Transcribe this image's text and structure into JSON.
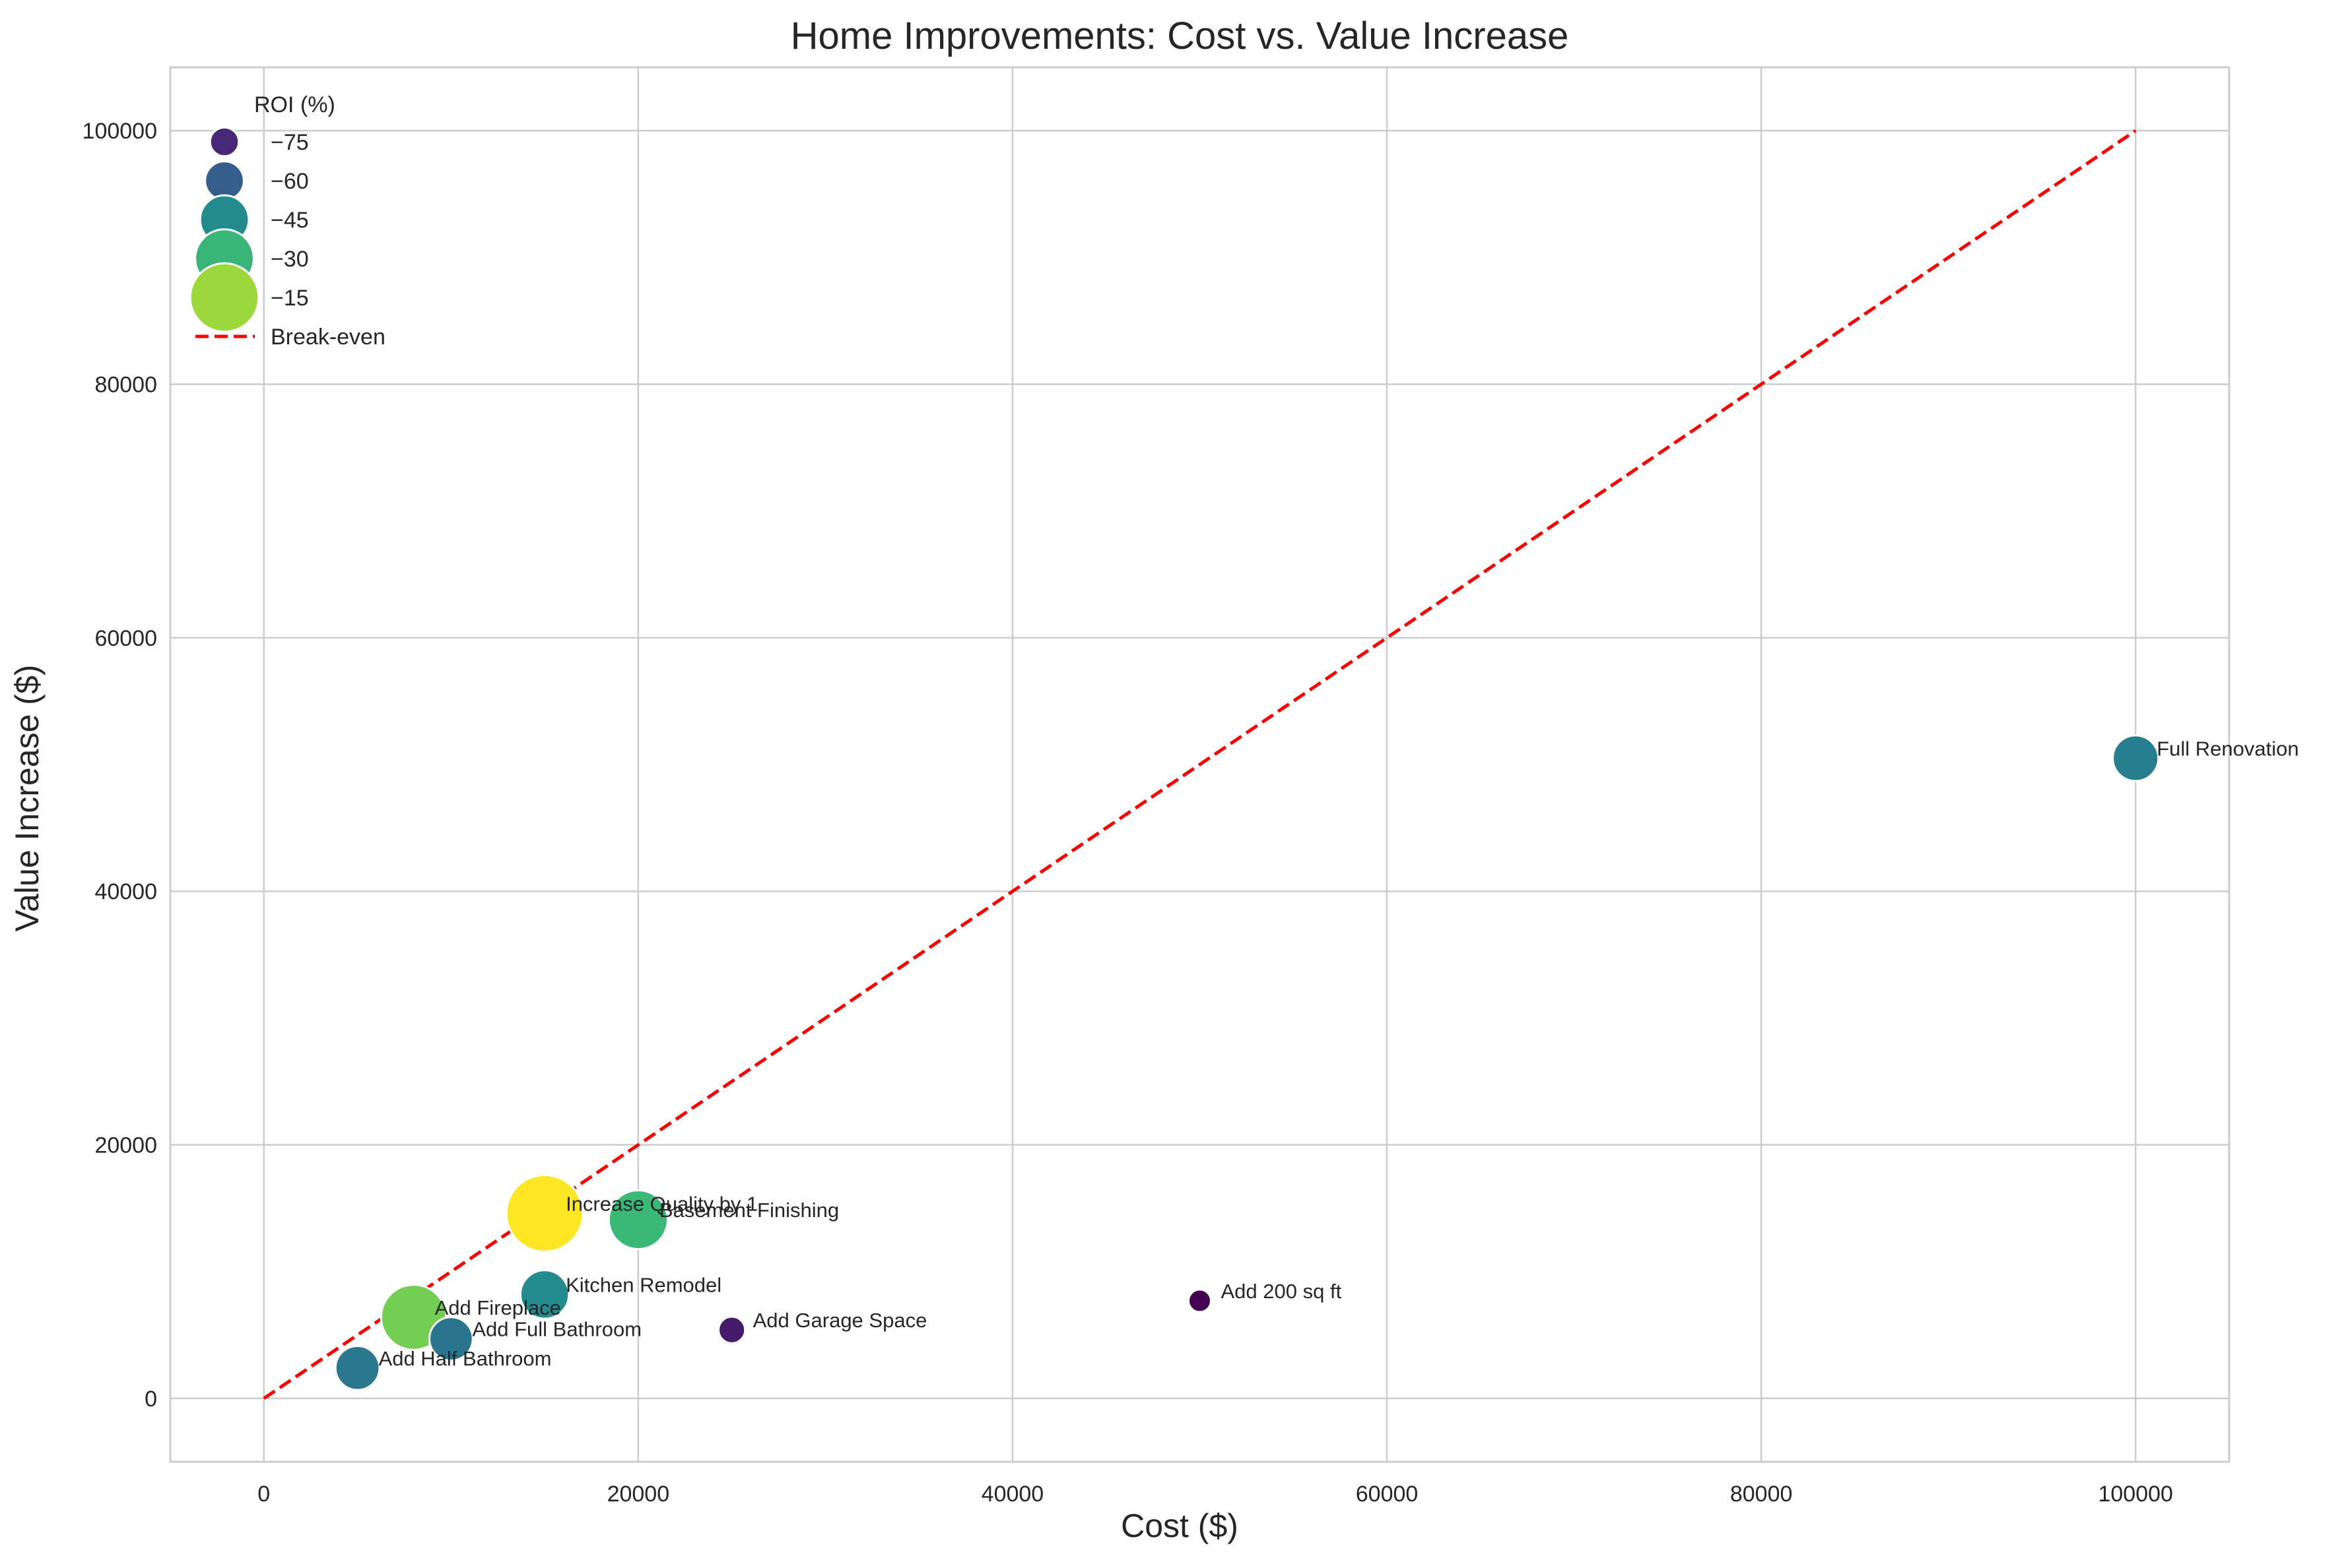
{
  "chart_data": {
    "type": "scatter",
    "title": "Home Improvements: Cost vs. Value Increase",
    "xlabel": "Cost ($)",
    "ylabel": "Value Increase ($)",
    "xlim": [
      -5000,
      105000
    ],
    "ylim": [
      -5000,
      105000
    ],
    "x_ticks": [
      0,
      20000,
      40000,
      60000,
      80000,
      100000
    ],
    "y_ticks": [
      0,
      20000,
      40000,
      60000,
      80000,
      100000
    ],
    "grid": true,
    "legend_position": "top-left",
    "size_and_color_encoding": "ROI (%)",
    "points": [
      {
        "label": "Full Renovation",
        "x": 100000,
        "y": 50500,
        "roi": -49.5
      },
      {
        "label": "Add 200 sq ft",
        "x": 50000,
        "y": 7700,
        "roi": -84.6
      },
      {
        "label": "Add Garage Space",
        "x": 25000,
        "y": 5400,
        "roi": -78.4
      },
      {
        "label": "Basement Finishing",
        "x": 20000,
        "y": 14100,
        "roi": -29.5
      },
      {
        "label": "Increase Quality by 1",
        "x": 15000,
        "y": 14600,
        "roi": -2.7
      },
      {
        "label": "Kitchen Remodel",
        "x": 15000,
        "y": 8200,
        "roi": -45.3
      },
      {
        "label": "Add Fireplace",
        "x": 8000,
        "y": 6400,
        "roi": -20.0
      },
      {
        "label": "Add Full Bathroom",
        "x": 10000,
        "y": 4700,
        "roi": -53.0
      },
      {
        "label": "Add Half Bathroom",
        "x": 5000,
        "y": 2400,
        "roi": -52.0
      }
    ],
    "roi_range": [
      -84.6,
      -2.7
    ],
    "colormap": "viridis",
    "break_even_line": {
      "label": "Break-even",
      "x": [
        0,
        100000
      ],
      "y": [
        0,
        100000
      ],
      "color": "#ff0000",
      "style": "dashed"
    },
    "legend": {
      "title": "ROI (%)",
      "size_entries": [
        {
          "label": "−75",
          "roi": -75
        },
        {
          "label": "−60",
          "roi": -60
        },
        {
          "label": "−45",
          "roi": -45
        },
        {
          "label": "−30",
          "roi": -30
        },
        {
          "label": "−15",
          "roi": -15
        }
      ],
      "line_entry_label": "Break-even"
    }
  },
  "colors": {
    "grid": "#cccccc",
    "frame": "#cccccc",
    "background": "#ffffff",
    "text": "#262626",
    "marker_edge": "#ffffff",
    "break_even": "#ff0000"
  }
}
